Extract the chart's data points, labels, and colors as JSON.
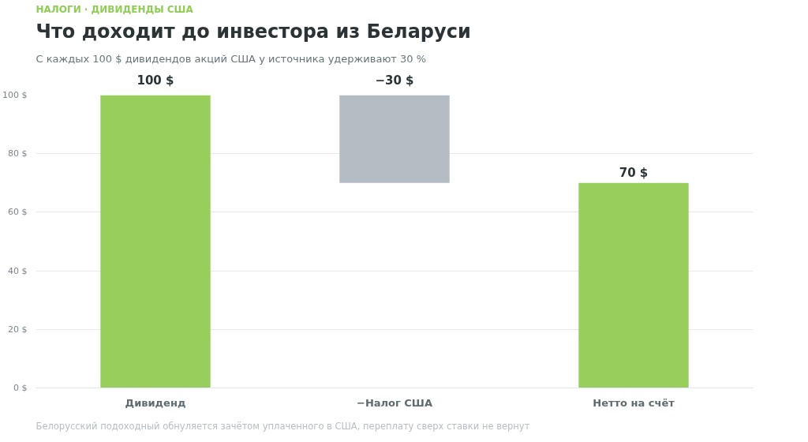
{
  "chart_data": {
    "type": "bar",
    "title": "Что доходит до инвестора из Беларуси",
    "subtitle": "С каждых 100 $ дивидендов акций США у источника удерживают 30 %",
    "annotations": [
      "НАЛОГИ · ДИВИДЕНДЫ США",
      "Белорусский подоходный обнуляется зачётом уплаченного в США, переплату сверх ставки не вернут"
    ],
    "categories": [
      "Дивиденд",
      "−Налог США",
      "Нетто на счёт"
    ],
    "values": [
      100,
      -30,
      70
    ],
    "base": [
      0,
      100,
      0
    ],
    "colors": [
      "#97ce5c",
      "#b3bdc3",
      "#97ce5c"
    ],
    "value_labels": [
      "100 $",
      "−30 $",
      "70 $"
    ],
    "ylim": [
      0,
      100
    ],
    "yticks": [
      {
        "value": 0,
        "label": "0 $"
      },
      {
        "value": 20,
        "label": "20 $"
      },
      {
        "value": 40,
        "label": "40 $"
      },
      {
        "value": 60,
        "label": "60 $"
      },
      {
        "value": 80,
        "label": "80 $"
      },
      {
        "value": 100,
        "label": "100 $"
      }
    ],
    "grid": "y"
  }
}
